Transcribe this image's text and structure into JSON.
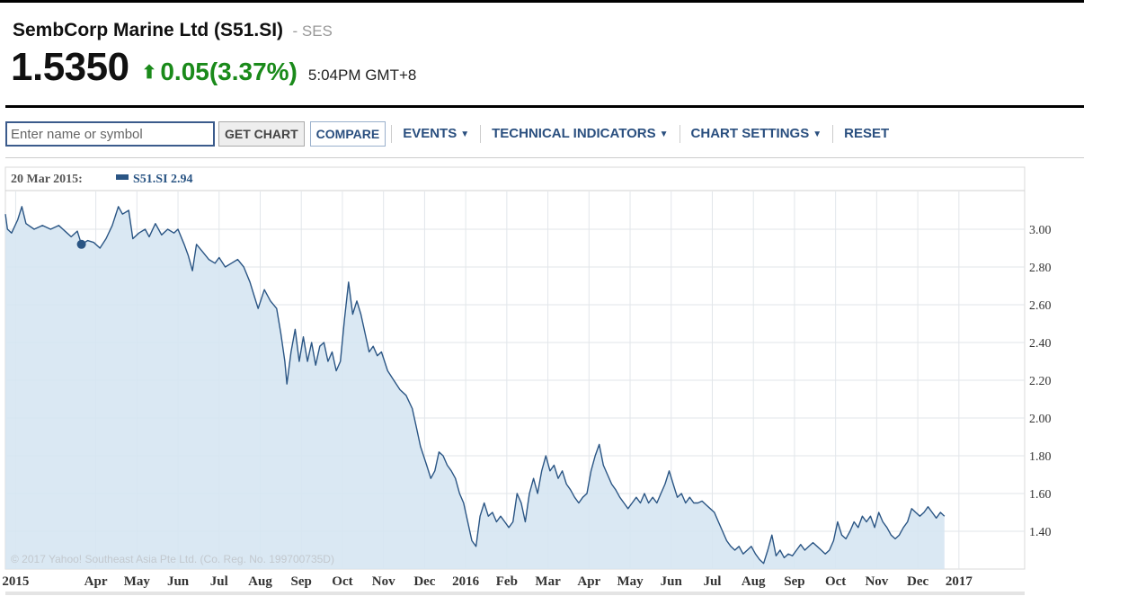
{
  "header": {
    "company": "SembCorp Marine Ltd (S51.SI)",
    "exchange": "- SES",
    "price": "1.5350",
    "change": "0.05(3.37%)",
    "change_color": "#1a8a1a",
    "time": "5:04PM GMT+8"
  },
  "toolbar": {
    "search_placeholder": "Enter name or symbol",
    "get_chart": "GET CHART",
    "compare": "COMPARE",
    "events": "EVENTS",
    "technical_indicators": "TECHNICAL INDICATORS",
    "chart_settings": "CHART SETTINGS",
    "reset": "RESET"
  },
  "chart_data": {
    "type": "area",
    "tooltip_date": "20 Mar 2015:",
    "tooltip_series": "S51.SI 2.94",
    "series_name": "S51.SI",
    "line_color": "#2a5584",
    "fill_color": "#d6e6f2",
    "copyright": "© 2017 Yahoo! Southeast Asia Pte Ltd. (Co. Reg. No. 199700735D)",
    "ylim": [
      1.2,
      3.2
    ],
    "yticks": [
      {
        "v": 3.0,
        "label": "3.00"
      },
      {
        "v": 2.8,
        "label": "2.80"
      },
      {
        "v": 2.6,
        "label": "2.60"
      },
      {
        "v": 2.4,
        "label": "2.40"
      },
      {
        "v": 2.2,
        "label": "2.20"
      },
      {
        "v": 2.0,
        "label": "2.00"
      },
      {
        "v": 1.8,
        "label": "1.80"
      },
      {
        "v": 1.6,
        "label": "1.60"
      },
      {
        "v": 1.4,
        "label": "1.40"
      }
    ],
    "xlim": [
      0,
      24.8
    ],
    "xticks": [
      {
        "m": 0.25,
        "label": "2015"
      },
      {
        "m": 2.2,
        "label": "Apr"
      },
      {
        "m": 3.2,
        "label": "May"
      },
      {
        "m": 4.2,
        "label": "Jun"
      },
      {
        "m": 5.2,
        "label": "Jul"
      },
      {
        "m": 6.2,
        "label": "Aug"
      },
      {
        "m": 7.2,
        "label": "Sep"
      },
      {
        "m": 8.2,
        "label": "Oct"
      },
      {
        "m": 9.2,
        "label": "Nov"
      },
      {
        "m": 10.2,
        "label": "Dec"
      },
      {
        "m": 11.2,
        "label": "2016"
      },
      {
        "m": 12.2,
        "label": "Feb"
      },
      {
        "m": 13.2,
        "label": "Mar"
      },
      {
        "m": 14.2,
        "label": "Apr"
      },
      {
        "m": 15.2,
        "label": "May"
      },
      {
        "m": 16.2,
        "label": "Jun"
      },
      {
        "m": 17.2,
        "label": "Jul"
      },
      {
        "m": 18.2,
        "label": "Aug"
      },
      {
        "m": 19.2,
        "label": "Sep"
      },
      {
        "m": 20.2,
        "label": "Oct"
      },
      {
        "m": 21.2,
        "label": "Nov"
      },
      {
        "m": 22.2,
        "label": "Dec"
      },
      {
        "m": 23.2,
        "label": "2017"
      }
    ],
    "points": [
      [
        0.0,
        3.08
      ],
      [
        0.05,
        3.0
      ],
      [
        0.15,
        2.98
      ],
      [
        0.3,
        3.05
      ],
      [
        0.4,
        3.12
      ],
      [
        0.5,
        3.03
      ],
      [
        0.7,
        3.0
      ],
      [
        0.9,
        3.02
      ],
      [
        1.1,
        3.0
      ],
      [
        1.3,
        3.02
      ],
      [
        1.5,
        2.98
      ],
      [
        1.6,
        2.96
      ],
      [
        1.75,
        2.99
      ],
      [
        1.85,
        2.92
      ],
      [
        2.0,
        2.94
      ],
      [
        2.15,
        2.93
      ],
      [
        2.3,
        2.9
      ],
      [
        2.45,
        2.95
      ],
      [
        2.6,
        3.02
      ],
      [
        2.75,
        3.12
      ],
      [
        2.85,
        3.08
      ],
      [
        3.0,
        3.1
      ],
      [
        3.1,
        2.95
      ],
      [
        3.25,
        2.98
      ],
      [
        3.4,
        3.0
      ],
      [
        3.5,
        2.96
      ],
      [
        3.65,
        3.03
      ],
      [
        3.8,
        2.97
      ],
      [
        3.95,
        3.0
      ],
      [
        4.1,
        2.98
      ],
      [
        4.2,
        3.0
      ],
      [
        4.35,
        2.92
      ],
      [
        4.45,
        2.86
      ],
      [
        4.55,
        2.78
      ],
      [
        4.65,
        2.92
      ],
      [
        4.8,
        2.88
      ],
      [
        4.95,
        2.84
      ],
      [
        5.1,
        2.82
      ],
      [
        5.2,
        2.85
      ],
      [
        5.35,
        2.8
      ],
      [
        5.5,
        2.82
      ],
      [
        5.65,
        2.84
      ],
      [
        5.8,
        2.8
      ],
      [
        5.95,
        2.72
      ],
      [
        6.05,
        2.65
      ],
      [
        6.15,
        2.58
      ],
      [
        6.3,
        2.68
      ],
      [
        6.45,
        2.62
      ],
      [
        6.6,
        2.58
      ],
      [
        6.7,
        2.45
      ],
      [
        6.8,
        2.3
      ],
      [
        6.85,
        2.18
      ],
      [
        6.95,
        2.35
      ],
      [
        7.05,
        2.47
      ],
      [
        7.15,
        2.3
      ],
      [
        7.25,
        2.43
      ],
      [
        7.35,
        2.3
      ],
      [
        7.45,
        2.4
      ],
      [
        7.55,
        2.28
      ],
      [
        7.65,
        2.38
      ],
      [
        7.75,
        2.4
      ],
      [
        7.85,
        2.3
      ],
      [
        7.95,
        2.35
      ],
      [
        8.05,
        2.25
      ],
      [
        8.15,
        2.3
      ],
      [
        8.25,
        2.52
      ],
      [
        8.35,
        2.72
      ],
      [
        8.45,
        2.55
      ],
      [
        8.55,
        2.62
      ],
      [
        8.65,
        2.55
      ],
      [
        8.75,
        2.45
      ],
      [
        8.85,
        2.35
      ],
      [
        8.95,
        2.38
      ],
      [
        9.05,
        2.33
      ],
      [
        9.15,
        2.35
      ],
      [
        9.3,
        2.25
      ],
      [
        9.45,
        2.2
      ],
      [
        9.6,
        2.15
      ],
      [
        9.75,
        2.12
      ],
      [
        9.9,
        2.05
      ],
      [
        10.0,
        1.95
      ],
      [
        10.1,
        1.85
      ],
      [
        10.25,
        1.75
      ],
      [
        10.35,
        1.68
      ],
      [
        10.45,
        1.72
      ],
      [
        10.55,
        1.82
      ],
      [
        10.65,
        1.8
      ],
      [
        10.75,
        1.75
      ],
      [
        10.85,
        1.72
      ],
      [
        10.95,
        1.68
      ],
      [
        11.05,
        1.6
      ],
      [
        11.15,
        1.55
      ],
      [
        11.25,
        1.45
      ],
      [
        11.35,
        1.35
      ],
      [
        11.45,
        1.32
      ],
      [
        11.55,
        1.48
      ],
      [
        11.65,
        1.55
      ],
      [
        11.75,
        1.48
      ],
      [
        11.85,
        1.5
      ],
      [
        11.95,
        1.45
      ],
      [
        12.05,
        1.48
      ],
      [
        12.15,
        1.45
      ],
      [
        12.25,
        1.42
      ],
      [
        12.35,
        1.45
      ],
      [
        12.45,
        1.6
      ],
      [
        12.55,
        1.55
      ],
      [
        12.65,
        1.45
      ],
      [
        12.75,
        1.6
      ],
      [
        12.85,
        1.68
      ],
      [
        12.95,
        1.6
      ],
      [
        13.05,
        1.72
      ],
      [
        13.15,
        1.8
      ],
      [
        13.25,
        1.72
      ],
      [
        13.35,
        1.75
      ],
      [
        13.45,
        1.68
      ],
      [
        13.55,
        1.72
      ],
      [
        13.65,
        1.65
      ],
      [
        13.75,
        1.62
      ],
      [
        13.85,
        1.58
      ],
      [
        13.95,
        1.55
      ],
      [
        14.05,
        1.58
      ],
      [
        14.15,
        1.6
      ],
      [
        14.25,
        1.72
      ],
      [
        14.35,
        1.8
      ],
      [
        14.45,
        1.86
      ],
      [
        14.55,
        1.75
      ],
      [
        14.65,
        1.7
      ],
      [
        14.75,
        1.65
      ],
      [
        14.85,
        1.62
      ],
      [
        14.95,
        1.58
      ],
      [
        15.05,
        1.55
      ],
      [
        15.15,
        1.52
      ],
      [
        15.25,
        1.55
      ],
      [
        15.35,
        1.58
      ],
      [
        15.45,
        1.55
      ],
      [
        15.55,
        1.6
      ],
      [
        15.65,
        1.55
      ],
      [
        15.75,
        1.58
      ],
      [
        15.85,
        1.55
      ],
      [
        15.95,
        1.6
      ],
      [
        16.05,
        1.65
      ],
      [
        16.15,
        1.72
      ],
      [
        16.25,
        1.65
      ],
      [
        16.35,
        1.58
      ],
      [
        16.45,
        1.6
      ],
      [
        16.55,
        1.55
      ],
      [
        16.65,
        1.58
      ],
      [
        16.75,
        1.55
      ],
      [
        16.85,
        1.55
      ],
      [
        16.95,
        1.56
      ],
      [
        17.05,
        1.54
      ],
      [
        17.15,
        1.52
      ],
      [
        17.25,
        1.5
      ],
      [
        17.35,
        1.45
      ],
      [
        17.45,
        1.4
      ],
      [
        17.55,
        1.35
      ],
      [
        17.65,
        1.32
      ],
      [
        17.75,
        1.3
      ],
      [
        17.85,
        1.32
      ],
      [
        17.95,
        1.28
      ],
      [
        18.05,
        1.3
      ],
      [
        18.15,
        1.32
      ],
      [
        18.25,
        1.28
      ],
      [
        18.35,
        1.25
      ],
      [
        18.45,
        1.23
      ],
      [
        18.55,
        1.3
      ],
      [
        18.65,
        1.38
      ],
      [
        18.75,
        1.27
      ],
      [
        18.85,
        1.3
      ],
      [
        18.95,
        1.26
      ],
      [
        19.05,
        1.28
      ],
      [
        19.15,
        1.27
      ],
      [
        19.25,
        1.3
      ],
      [
        19.35,
        1.33
      ],
      [
        19.45,
        1.3
      ],
      [
        19.55,
        1.32
      ],
      [
        19.65,
        1.34
      ],
      [
        19.75,
        1.32
      ],
      [
        19.85,
        1.3
      ],
      [
        19.95,
        1.28
      ],
      [
        20.05,
        1.3
      ],
      [
        20.15,
        1.35
      ],
      [
        20.25,
        1.45
      ],
      [
        20.35,
        1.38
      ],
      [
        20.45,
        1.36
      ],
      [
        20.55,
        1.4
      ],
      [
        20.65,
        1.45
      ],
      [
        20.75,
        1.42
      ],
      [
        20.85,
        1.48
      ],
      [
        20.95,
        1.45
      ],
      [
        21.05,
        1.48
      ],
      [
        21.15,
        1.42
      ],
      [
        21.25,
        1.5
      ],
      [
        21.35,
        1.45
      ],
      [
        21.45,
        1.42
      ],
      [
        21.55,
        1.38
      ],
      [
        21.65,
        1.36
      ],
      [
        21.75,
        1.38
      ],
      [
        21.85,
        1.42
      ],
      [
        21.95,
        1.45
      ],
      [
        22.05,
        1.52
      ],
      [
        22.15,
        1.5
      ],
      [
        22.25,
        1.48
      ],
      [
        22.35,
        1.5
      ],
      [
        22.45,
        1.53
      ],
      [
        22.55,
        1.5
      ],
      [
        22.65,
        1.47
      ],
      [
        22.75,
        1.5
      ],
      [
        22.85,
        1.48
      ]
    ]
  }
}
